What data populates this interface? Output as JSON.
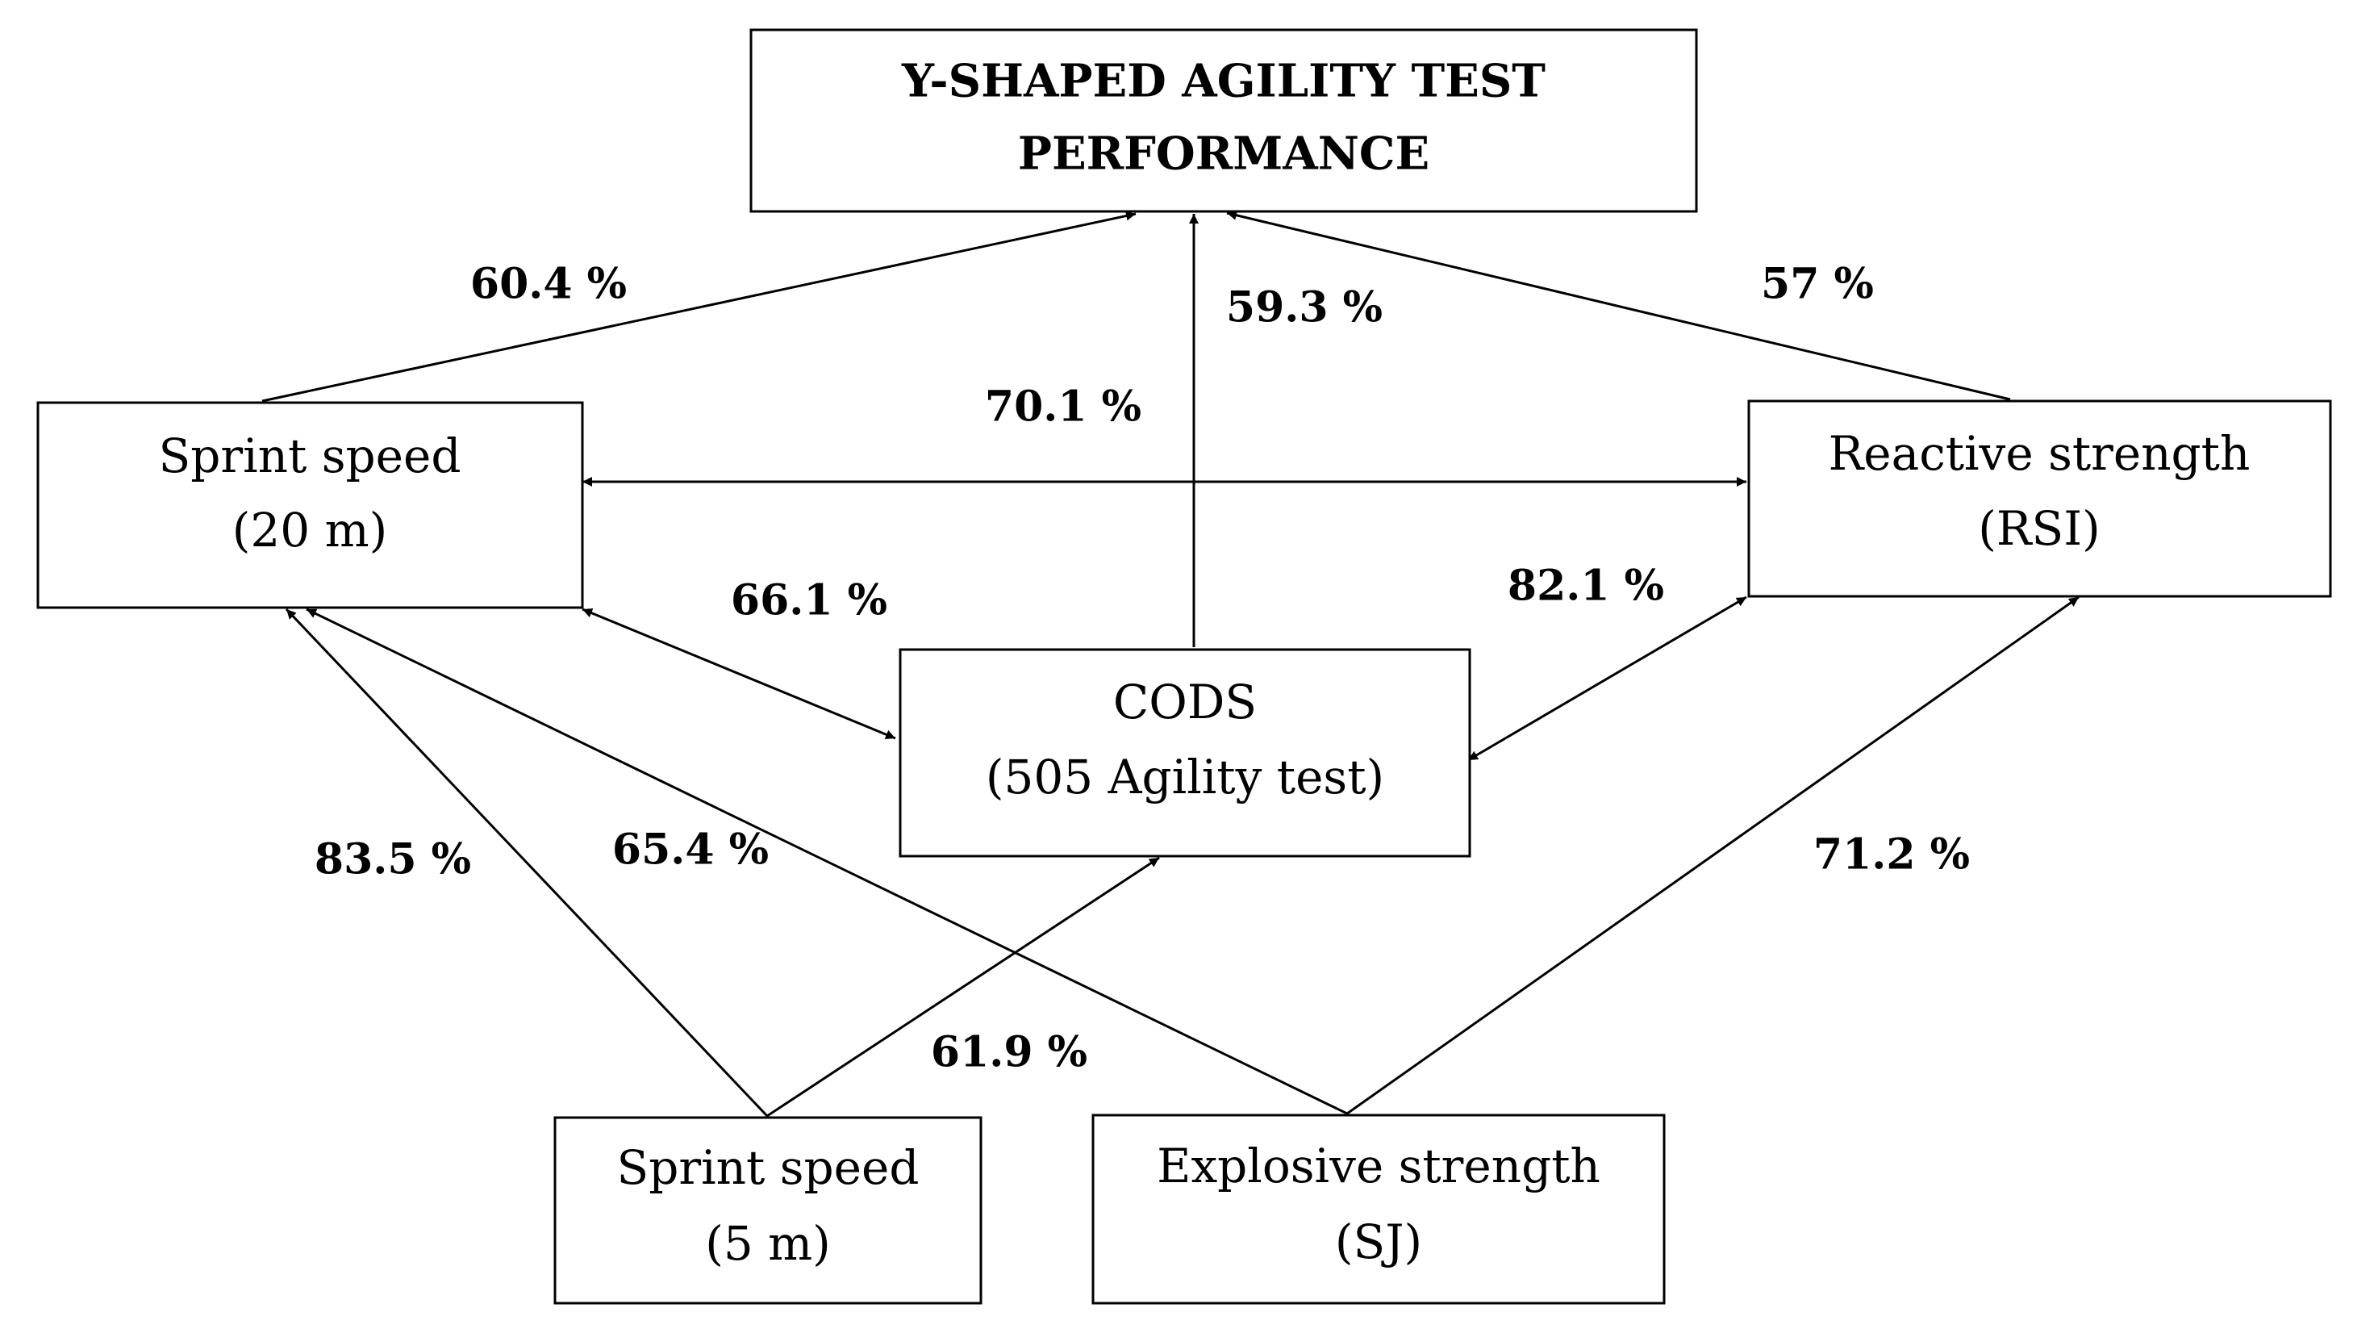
{
  "nodes": {
    "target": {
      "lines": [
        "Y-SHAPED AGILITY TEST",
        "PERFORMANCE"
      ]
    },
    "sprint20": {
      "lines": [
        "Sprint speed",
        "(20 m)"
      ]
    },
    "reactive": {
      "lines": [
        "Reactive strength",
        "(RSI)"
      ]
    },
    "cods": {
      "lines": [
        "CODS",
        "(505 Agility test)"
      ]
    },
    "sprint5": {
      "lines": [
        "Sprint speed",
        "(5 m)"
      ]
    },
    "explosive": {
      "lines": [
        "Explosive strength",
        "(SJ)"
      ]
    }
  },
  "edges": {
    "sprint20_to_target": "60.4 %",
    "cods_to_target": "59.3 %",
    "reactive_to_target": "57 %",
    "sprint20_reactive": "70.1 %",
    "sprint20_cods": "66.1 %",
    "reactive_cods": "82.1 %",
    "sprint5_to_sprint20": "83.5 %",
    "explosive_to_sprint20": "65.4 %",
    "sprint5_to_cods": "61.9 %",
    "explosive_to_reactive": "71.2 %"
  }
}
